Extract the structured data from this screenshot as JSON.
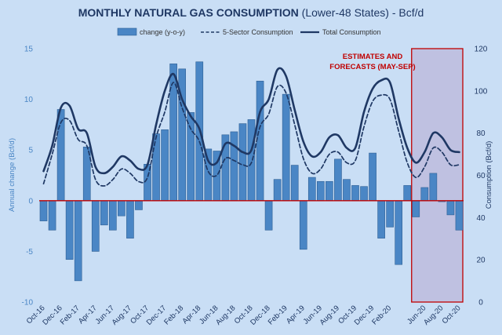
{
  "chart_data": {
    "type": "bar+line",
    "title": {
      "bold": "MONTHLY NATURAL GAS CONSUMPTION",
      "normal": " (Lower-48 States) - Bcf/d"
    },
    "ylabel_left": "Annual change (Bcf/d)",
    "ylabel_right": "Consumption (Bcf/d)",
    "ylim_left": [
      -10,
      15
    ],
    "yticks_left": [
      -10,
      -5,
      0,
      5,
      10,
      15
    ],
    "ylim_right": [
      0,
      120
    ],
    "yticks_right": [
      0,
      20,
      40,
      60,
      80,
      100,
      120
    ],
    "legend": [
      "change (y-o-y)",
      "5-Sector Consumption",
      "Total Consumption"
    ],
    "annotation": [
      "ESTIMATES AND",
      "FORECASTS (MAY-SEP)"
    ],
    "forecast_start_index": 43,
    "tick_labels": [
      {
        "i": 0,
        "label": "Oct-16"
      },
      {
        "i": 2,
        "label": "Dec-16"
      },
      {
        "i": 4,
        "label": "Feb-17"
      },
      {
        "i": 6,
        "label": "Apr-17"
      },
      {
        "i": 8,
        "label": "Jun-17"
      },
      {
        "i": 10,
        "label": "Aug-17"
      },
      {
        "i": 12,
        "label": "Oct-17"
      },
      {
        "i": 14,
        "label": "Dec-17"
      },
      {
        "i": 16,
        "label": "Feb-18"
      },
      {
        "i": 18,
        "label": "Apr-18"
      },
      {
        "i": 20,
        "label": "Jun-18"
      },
      {
        "i": 22,
        "label": "Aug-18"
      },
      {
        "i": 24,
        "label": "Oct-18"
      },
      {
        "i": 26,
        "label": "Dec-18"
      },
      {
        "i": 28,
        "label": "Feb-19"
      },
      {
        "i": 30,
        "label": "Apr-19"
      },
      {
        "i": 32,
        "label": "Jun-19"
      },
      {
        "i": 34,
        "label": "Aug-19"
      },
      {
        "i": 36,
        "label": "Oct-19"
      },
      {
        "i": 38,
        "label": "Dec-19"
      },
      {
        "i": 40,
        "label": "Feb-20"
      },
      {
        "i": 44,
        "label": "Jun-20"
      },
      {
        "i": 46,
        "label": "Aug-20"
      },
      {
        "i": 48,
        "label": "Oct-20"
      }
    ],
    "months": [
      "Oct-16",
      "Nov-16",
      "Dec-16",
      "Jan-17",
      "Feb-17",
      "Mar-17",
      "Apr-17",
      "May-17",
      "Jun-17",
      "Jul-17",
      "Aug-17",
      "Sep-17",
      "Oct-17",
      "Nov-17",
      "Dec-17",
      "Jan-18",
      "Feb-18",
      "Mar-18",
      "Apr-18",
      "May-18",
      "Jun-18",
      "Jul-18",
      "Aug-18",
      "Sep-18",
      "Oct-18",
      "Nov-18",
      "Dec-18",
      "Jan-19",
      "Feb-19",
      "Mar-19",
      "Apr-19",
      "May-19",
      "Jun-19",
      "Jul-19",
      "Aug-19",
      "Sep-19",
      "Oct-19",
      "Nov-19",
      "Dec-19",
      "Jan-20",
      "Feb-20",
      "Mar-20",
      "Apr-20",
      "May-20",
      "Jun-20",
      "Jul-20",
      "Aug-20",
      "Sep-20",
      "Oct-20"
    ],
    "series": [
      {
        "name": "change (y-o-y)",
        "axis": "left",
        "kind": "bar",
        "values": [
          -2,
          -2.9,
          9,
          -5.8,
          -7.9,
          5.3,
          -5,
          -2.4,
          -2.9,
          -1.5,
          -3.7,
          -0.9,
          3.6,
          6.6,
          7,
          13.5,
          13,
          8.7,
          13.7,
          5.1,
          4.9,
          6.5,
          6.8,
          7.6,
          8,
          11.8,
          -2.9,
          2.1,
          10.5,
          3.5,
          -4.8,
          2.3,
          1.9,
          1.9,
          4.1,
          2.1,
          1.5,
          1.4,
          4.7,
          -3.7,
          -2.6,
          -6.3,
          1.5,
          -1.6,
          1.3,
          2.7,
          -0.1,
          -1.4,
          -2.9
        ]
      },
      {
        "name": "5-Sector Consumption",
        "axis": "right",
        "kind": "dashed",
        "values": [
          56,
          70,
          85,
          86,
          77,
          74,
          58,
          55,
          58,
          63,
          61,
          57,
          59,
          78,
          90,
          104,
          92,
          82,
          76,
          62,
          60,
          68,
          67,
          65,
          66,
          83,
          89,
          102,
          99,
          84,
          68,
          61,
          63,
          70,
          71,
          66,
          67,
          83,
          95,
          98,
          96,
          81,
          66,
          59,
          64,
          73,
          71,
          65,
          65
        ]
      },
      {
        "name": "Total Consumption",
        "axis": "right",
        "kind": "solid",
        "values": [
          62,
          74,
          92,
          93,
          82,
          80,
          64,
          61,
          64,
          69,
          67,
          63,
          65,
          84,
          100,
          108,
          96,
          88,
          82,
          67,
          66,
          75,
          74,
          71,
          72,
          90,
          96,
          110,
          107,
          91,
          76,
          69,
          71,
          78,
          79,
          73,
          73,
          90,
          101,
          105,
          104,
          87,
          73,
          66,
          71,
          80,
          78,
          72,
          71
        ]
      }
    ]
  }
}
